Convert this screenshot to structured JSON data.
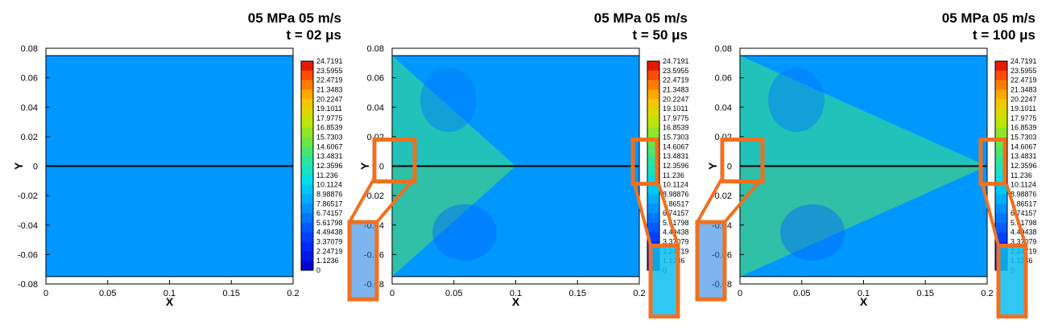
{
  "chart_data": [
    {
      "type": "heatmap",
      "title": "05 MPa 05 m/s",
      "subtitle": "t = 02 μs",
      "xlabel": "X",
      "ylabel": "Y",
      "xlim": [
        0,
        0.2
      ],
      "ylim": [
        -0.08,
        0.08
      ],
      "xticks": [
        "0",
        "0.05",
        "0.1",
        "0.15",
        "0.2"
      ],
      "yticks": [
        "0.08",
        "0.06",
        "0.04",
        "0.02",
        "0",
        "-0.02",
        "-0.04",
        "-0.06",
        "-0.08"
      ],
      "contour_levels": [
        "24.7191",
        "23.5955",
        "22.4719",
        "21.3483",
        "20.2247",
        "19.1011",
        "17.9775",
        "16.8539",
        "15.7303",
        "14.6067",
        "13.4831",
        "12.3596",
        "11.236",
        "10.1124",
        "8.98876",
        "7.86517",
        "6.74157",
        "5.61798",
        "4.49438",
        "3.37079",
        "2.24719",
        "1.1236",
        "0"
      ],
      "background_level": 7.5,
      "crack_line_y": 0,
      "zoom_insets": false
    },
    {
      "type": "heatmap",
      "title": "05 MPa 05 m/s",
      "subtitle": "t = 50 μs",
      "xlabel": "X",
      "ylabel": "Y",
      "xlim": [
        0,
        0.2
      ],
      "ylim": [
        -0.08,
        0.08
      ],
      "xticks": [
        "0",
        "0.05",
        "0.1",
        "0.15",
        "0.2"
      ],
      "yticks": [
        "0.08",
        "0.06",
        "0.04",
        "0.02",
        "0",
        "-0.02",
        "-0.04",
        "-0.06",
        "-0.08"
      ],
      "contour_levels": [
        "24.7191",
        "23.5955",
        "22.4719",
        "21.3483",
        "20.2247",
        "19.1011",
        "17.9775",
        "16.8539",
        "15.7303",
        "14.6067",
        "13.4831",
        "12.3596",
        "11.236",
        "10.1124",
        "8.98876",
        "7.86517",
        "6.74157",
        "5.61798",
        "4.49438",
        "3.37079",
        "2.24719",
        "1.1236",
        "0"
      ],
      "background_level": 7.5,
      "crack_line_y": 0,
      "zoom_insets": true
    },
    {
      "type": "heatmap",
      "title": "05 MPa 05 m/s",
      "subtitle": "t = 100 μs",
      "xlabel": "X",
      "ylabel": "Y",
      "xlim": [
        0,
        0.2
      ],
      "ylim": [
        -0.08,
        0.08
      ],
      "xticks": [
        "0",
        "0.05",
        "0.1",
        "0.15",
        "0.2"
      ],
      "yticks": [
        "0.08",
        "0.06",
        "0.04",
        "0.02",
        "0",
        "-0.02",
        "-0.04",
        "-0.06",
        "-0.08"
      ],
      "contour_levels": [
        "24.7191",
        "23.5955",
        "22.4719",
        "21.3483",
        "20.2247",
        "19.1011",
        "17.9775",
        "16.8539",
        "15.7303",
        "14.6067",
        "13.4831",
        "12.3596",
        "11.236",
        "10.1124",
        "8.98876",
        "7.86517",
        "6.74157",
        "5.61798",
        "4.49438",
        "3.37079",
        "2.24719",
        "1.1236",
        "0"
      ],
      "background_level": 7.5,
      "crack_line_y": 0,
      "zoom_insets": true
    }
  ],
  "colors": {
    "highlight": "#f07020",
    "background_field": "#0cbef0",
    "crack": "#000000"
  }
}
